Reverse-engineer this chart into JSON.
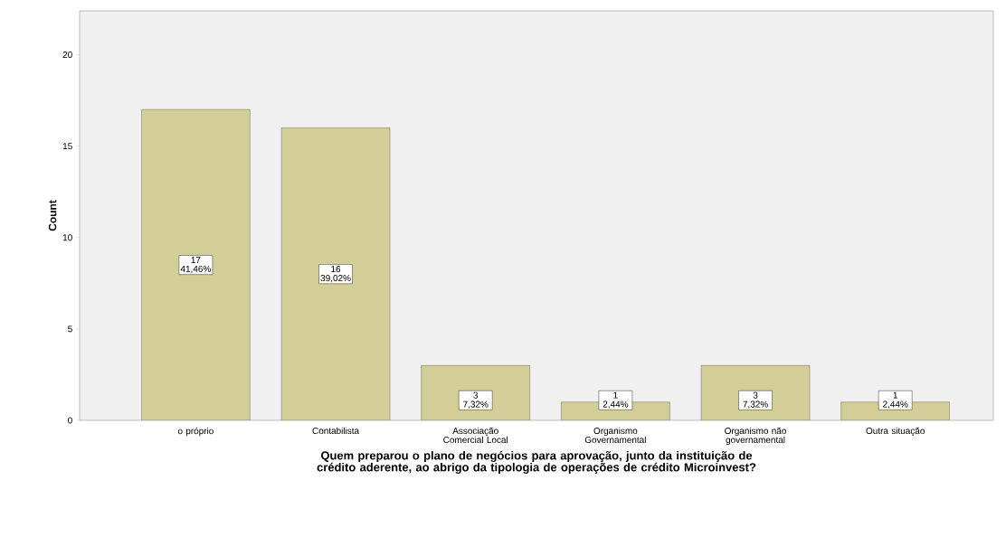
{
  "chart_data": {
    "type": "bar",
    "xlabel": "Quem preparou o plano de negócios para aprovação, junto da instituição de crédito aderente, ao abrigo da tipologia de operações de crédito Microinvest?",
    "ylabel": "Count",
    "categories": [
      "o próprio",
      "Contabilista",
      "Associação Comercial Local",
      "Organismo Governamental",
      "Organismo não governamental",
      "Outra situação"
    ],
    "values": [
      17,
      16,
      3,
      1,
      3,
      1
    ],
    "value_labels": [
      "17 41,46%",
      "16 39,02%",
      "3 7,32%",
      "1 2,44%",
      "3 7,32%",
      "1 2,44%"
    ],
    "color": "#d3ce97",
    "ylim": [
      0,
      22.4
    ],
    "yticks": [
      0,
      5,
      10,
      15,
      20
    ],
    "grid": false
  }
}
